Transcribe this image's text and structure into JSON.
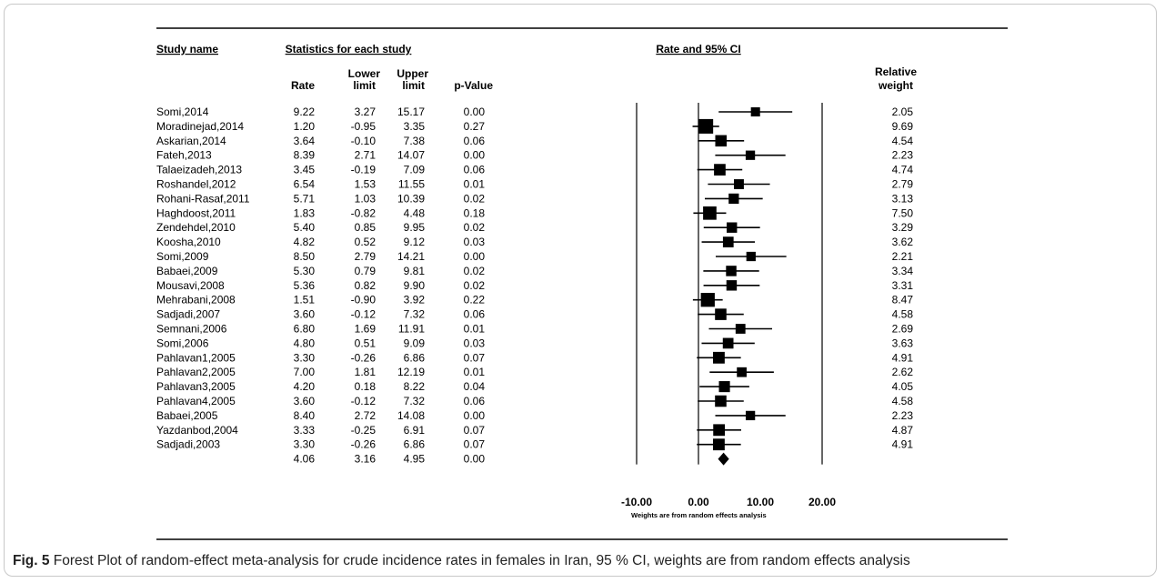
{
  "caption": {
    "label": "Fig. 5",
    "text": "Forest Plot of random-effect meta-analysis for crude incidence rates in females in Iran, 95 % CI, weights are from random effects analysis"
  },
  "table": {
    "study_header": "Study name",
    "stats_header": "Statistics for each study",
    "plot_header": "Rate and 95% CI",
    "columns": {
      "rate": "Rate",
      "lower_1": "Lower",
      "lower_2": "limit",
      "upper_1": "Upper",
      "upper_2": "limit",
      "pvalue": "p-Value",
      "weight_1": "Relative",
      "weight_2": "weight"
    },
    "footnote": "Weights are from random effects analysis"
  },
  "chart_data": {
    "type": "forest",
    "title": "Rate and 95% CI",
    "xlim": [
      -10,
      20
    ],
    "xticks": [
      -10,
      0,
      10,
      20
    ],
    "xtick_labels": [
      "-10.00",
      "0.00",
      "10.00",
      "20.00"
    ],
    "reference_lines": [
      -10,
      0,
      20
    ],
    "studies": [
      {
        "name": "Somi,2014",
        "rate": "9.22",
        "lower": "3.27",
        "upper": "15.17",
        "p": "0.00",
        "weight": "2.05"
      },
      {
        "name": "Moradinejad,2014",
        "rate": "1.20",
        "lower": "-0.95",
        "upper": "3.35",
        "p": "0.27",
        "weight": "9.69"
      },
      {
        "name": "Askarian,2014",
        "rate": "3.64",
        "lower": "-0.10",
        "upper": "7.38",
        "p": "0.06",
        "weight": "4.54"
      },
      {
        "name": "Fateh,2013",
        "rate": "8.39",
        "lower": "2.71",
        "upper": "14.07",
        "p": "0.00",
        "weight": "2.23"
      },
      {
        "name": "Talaeizadeh,2013",
        "rate": "3.45",
        "lower": "-0.19",
        "upper": "7.09",
        "p": "0.06",
        "weight": "4.74"
      },
      {
        "name": "Roshandel,2012",
        "rate": "6.54",
        "lower": "1.53",
        "upper": "11.55",
        "p": "0.01",
        "weight": "2.79"
      },
      {
        "name": "Rohani-Rasaf,2011",
        "rate": "5.71",
        "lower": "1.03",
        "upper": "10.39",
        "p": "0.02",
        "weight": "3.13"
      },
      {
        "name": "Haghdoost,2011",
        "rate": "1.83",
        "lower": "-0.82",
        "upper": "4.48",
        "p": "0.18",
        "weight": "7.50"
      },
      {
        "name": "Zendehdel,2010",
        "rate": "5.40",
        "lower": "0.85",
        "upper": "9.95",
        "p": "0.02",
        "weight": "3.29"
      },
      {
        "name": "Koosha,2010",
        "rate": "4.82",
        "lower": "0.52",
        "upper": "9.12",
        "p": "0.03",
        "weight": "3.62"
      },
      {
        "name": "Somi,2009",
        "rate": "8.50",
        "lower": "2.79",
        "upper": "14.21",
        "p": "0.00",
        "weight": "2.21"
      },
      {
        "name": "Babaei,2009",
        "rate": "5.30",
        "lower": "0.79",
        "upper": "9.81",
        "p": "0.02",
        "weight": "3.34"
      },
      {
        "name": "Mousavi,2008",
        "rate": "5.36",
        "lower": "0.82",
        "upper": "9.90",
        "p": "0.02",
        "weight": "3.31"
      },
      {
        "name": "Mehrabani,2008",
        "rate": "1.51",
        "lower": "-0.90",
        "upper": "3.92",
        "p": "0.22",
        "weight": "8.47"
      },
      {
        "name": "Sadjadi,2007",
        "rate": "3.60",
        "lower": "-0.12",
        "upper": "7.32",
        "p": "0.06",
        "weight": "4.58"
      },
      {
        "name": "Semnani,2006",
        "rate": "6.80",
        "lower": "1.69",
        "upper": "11.91",
        "p": "0.01",
        "weight": "2.69"
      },
      {
        "name": "Somi,2006",
        "rate": "4.80",
        "lower": "0.51",
        "upper": "9.09",
        "p": "0.03",
        "weight": "3.63"
      },
      {
        "name": "Pahlavan1,2005",
        "rate": "3.30",
        "lower": "-0.26",
        "upper": "6.86",
        "p": "0.07",
        "weight": "4.91"
      },
      {
        "name": "Pahlavan2,2005",
        "rate": "7.00",
        "lower": "1.81",
        "upper": "12.19",
        "p": "0.01",
        "weight": "2.62"
      },
      {
        "name": "Pahlavan3,2005",
        "rate": "4.20",
        "lower": "0.18",
        "upper": "8.22",
        "p": "0.04",
        "weight": "4.05"
      },
      {
        "name": "Pahlavan4,2005",
        "rate": "3.60",
        "lower": "-0.12",
        "upper": "7.32",
        "p": "0.06",
        "weight": "4.58"
      },
      {
        "name": "Babaei,2005",
        "rate": "8.40",
        "lower": "2.72",
        "upper": "14.08",
        "p": "0.00",
        "weight": "2.23"
      },
      {
        "name": "Yazdanbod,2004",
        "rate": "3.33",
        "lower": "-0.25",
        "upper": "6.91",
        "p": "0.07",
        "weight": "4.87"
      },
      {
        "name": "Sadjadi,2003",
        "rate": "3.30",
        "lower": "-0.26",
        "upper": "6.86",
        "p": "0.07",
        "weight": "4.91"
      }
    ],
    "pooled": {
      "rate": "4.06",
      "lower": "3.16",
      "upper": "4.95",
      "p": "0.00"
    }
  }
}
